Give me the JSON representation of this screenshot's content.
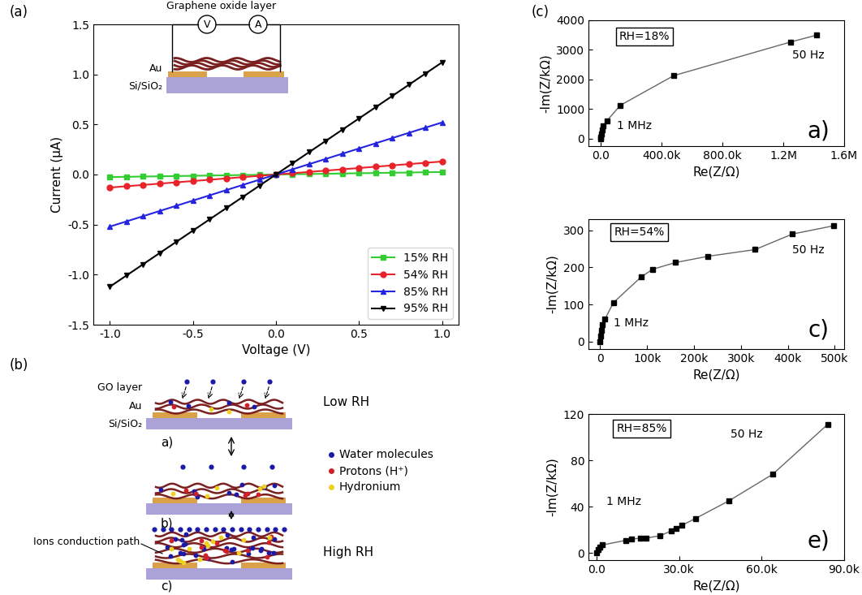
{
  "panel_labels": [
    "(a)",
    "(b)",
    "(c)"
  ],
  "chart_data": [
    {
      "type": "line",
      "x_label": "Voltage (V)",
      "y_label": "Current (μA)",
      "x": [
        -1.0,
        -0.9,
        -0.8,
        -0.7,
        -0.6,
        -0.5,
        -0.4,
        -0.3,
        -0.2,
        -0.1,
        0.0,
        0.1,
        0.2,
        0.3,
        0.4,
        0.5,
        0.6,
        0.7,
        0.8,
        0.9,
        1.0
      ],
      "series": [
        {
          "name": "15% RH",
          "color": "#33cc33",
          "marker": "square",
          "values": [
            -0.025,
            -0.023,
            -0.02,
            -0.018,
            -0.015,
            -0.013,
            -0.01,
            -0.008,
            -0.005,
            -0.003,
            0.0,
            0.003,
            0.005,
            0.008,
            0.01,
            0.013,
            0.015,
            0.018,
            0.02,
            0.023,
            0.025
          ]
        },
        {
          "name": "54% RH",
          "color": "#e8232a",
          "marker": "circle",
          "values": [
            -0.13,
            -0.117,
            -0.104,
            -0.091,
            -0.078,
            -0.065,
            -0.052,
            -0.039,
            -0.026,
            -0.013,
            0.0,
            0.013,
            0.026,
            0.039,
            0.052,
            0.065,
            0.078,
            0.091,
            0.104,
            0.117,
            0.13
          ]
        },
        {
          "name": "85% RH",
          "color": "#2424e0",
          "marker": "triangle_up",
          "values": [
            -0.52,
            -0.468,
            -0.416,
            -0.364,
            -0.312,
            -0.26,
            -0.208,
            -0.156,
            -0.104,
            -0.052,
            0.0,
            0.052,
            0.104,
            0.156,
            0.208,
            0.26,
            0.312,
            0.364,
            0.416,
            0.468,
            0.52
          ]
        },
        {
          "name": "95% RH",
          "color": "#000000",
          "marker": "triangle_down",
          "values": [
            -1.12,
            -1.008,
            -0.896,
            -0.784,
            -0.672,
            -0.56,
            -0.448,
            -0.336,
            -0.224,
            -0.112,
            0.0,
            0.112,
            0.224,
            0.336,
            0.448,
            0.56,
            0.672,
            0.784,
            0.896,
            1.008,
            1.12
          ]
        }
      ],
      "xlim": [
        -1.1,
        1.1
      ],
      "xticks": [
        {
          "value": -1.0,
          "label": "-1.0"
        },
        {
          "value": -0.5,
          "label": "-0.5"
        },
        {
          "value": 0.0,
          "label": "0.0"
        },
        {
          "value": 0.5,
          "label": "0.5"
        },
        {
          "value": 1.0,
          "label": "1.0"
        }
      ],
      "ylim": [
        -1.5,
        1.5
      ],
      "yticks": [
        {
          "value": -1.5,
          "label": "-1.5"
        },
        {
          "value": -1.0,
          "label": "-1.0"
        },
        {
          "value": -0.5,
          "label": "-0.5"
        },
        {
          "value": 0.0,
          "label": "0.0"
        },
        {
          "value": 0.5,
          "label": "0.5"
        },
        {
          "value": 1.0,
          "label": "1.0"
        },
        {
          "value": 1.5,
          "label": "1.5"
        }
      ],
      "legend": "lower right"
    },
    {
      "type": "line",
      "x_label": "Re(Z/Ω)",
      "y_label": "-Im(Z/kΩ)",
      "annotations": {
        "condition": "RH=18%",
        "high_frequency": "1 MHz",
        "low_frequency": "50 Hz",
        "subpanel": "a)"
      },
      "x": [
        0,
        1500,
        4000,
        8000,
        15000,
        40000,
        130000,
        480000,
        1250000,
        1420000
      ],
      "values": [
        0,
        60,
        160,
        300,
        430,
        600,
        1130,
        2130,
        3270,
        3500
      ],
      "color": "#000000",
      "marker": "square",
      "xlim": [
        -80000,
        1600000
      ],
      "xticks": [
        {
          "value": 0,
          "label": "0.0"
        },
        {
          "value": 400000,
          "label": "400.0k"
        },
        {
          "value": 800000,
          "label": "800.0k"
        },
        {
          "value": 1200000,
          "label": "1.2M"
        },
        {
          "value": 1600000,
          "label": "1.6M"
        }
      ],
      "ylim": [
        -250,
        4000
      ],
      "yticks": [
        0,
        1000,
        2000,
        3000,
        4000
      ]
    },
    {
      "type": "line",
      "x_label": "Re(Z/Ω)",
      "y_label": "-Im(Z/kΩ)",
      "annotations": {
        "condition": "RH=54%",
        "high_frequency": "1 MHz",
        "low_frequency": "50 Hz",
        "subpanel": "c)"
      },
      "x": [
        0,
        1000,
        2500,
        5000,
        10000,
        28000,
        88000,
        112000,
        160000,
        230000,
        330000,
        410000,
        497000
      ],
      "values": [
        0,
        15,
        30,
        45,
        60,
        105,
        175,
        195,
        213,
        230,
        248,
        290,
        312
      ],
      "color": "#000000",
      "marker": "square",
      "xlim": [
        -25000,
        520000
      ],
      "xticks": [
        {
          "value": 0,
          "label": "0"
        },
        {
          "value": 100000,
          "label": "100k"
        },
        {
          "value": 200000,
          "label": "200k"
        },
        {
          "value": 300000,
          "label": "300k"
        },
        {
          "value": 400000,
          "label": "400k"
        },
        {
          "value": 500000,
          "label": "500k"
        }
      ],
      "ylim": [
        -20,
        330
      ],
      "yticks": [
        0,
        100,
        200,
        300
      ]
    },
    {
      "type": "line",
      "x_label": "Re(Z/Ω)",
      "y_label": "-Im(Z/kΩ)",
      "annotations": {
        "condition": "RH=85%",
        "high_frequency": "1 MHz",
        "low_frequency": "50 Hz",
        "subpanel": "e)"
      },
      "x": [
        0,
        400,
        1000,
        2000,
        10500,
        12500,
        16000,
        18000,
        23000,
        27000,
        29000,
        31000,
        36000,
        48000,
        64000,
        84000
      ],
      "values": [
        0,
        3,
        5,
        7,
        11,
        12,
        13,
        13,
        15,
        19,
        21,
        24,
        30,
        45,
        68,
        111
      ],
      "color": "#000000",
      "marker": "square",
      "xlim": [
        -3000,
        90000
      ],
      "xticks": [
        {
          "value": 0,
          "label": "0.0"
        },
        {
          "value": 30000,
          "label": "30.0k"
        },
        {
          "value": 60000,
          "label": "60.0k"
        },
        {
          "value": 90000,
          "label": "90.0k"
        }
      ],
      "ylim": [
        -6,
        120
      ],
      "yticks": [
        0,
        40,
        80,
        120
      ]
    }
  ],
  "inset_schematic": {
    "layer": "Graphene oxide layer",
    "electrode": "Au",
    "substrate": "Si/SiO₂",
    "voltmeter": "V",
    "ammeter": "A"
  },
  "diagram": {
    "layer_labels": {
      "go": "GO layer",
      "electrode": "Au",
      "substrate": "Si/SiO₂"
    },
    "stages": [
      {
        "label": "a)",
        "condition": "Low RH"
      },
      {
        "label": "b)"
      },
      {
        "label": "c)",
        "condition": "High RH"
      }
    ],
    "legend": [
      {
        "text": "Water molecules",
        "color": "#1a1aa8"
      },
      {
        "text": "Protons (H⁺)",
        "color": "#d0202a"
      },
      {
        "text": "Hydronium",
        "color": "#f0d020"
      }
    ],
    "path_label": "Ions conduction path"
  }
}
